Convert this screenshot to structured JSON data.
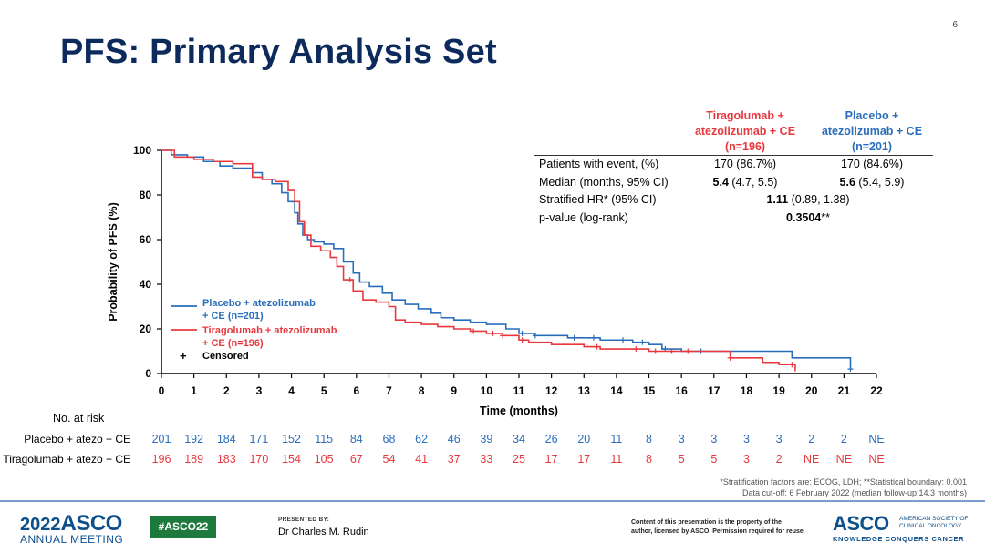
{
  "slide_number": "6",
  "title": "PFS: Primary Analysis Set",
  "colors": {
    "placebo": "#2a6ebb",
    "tiragolumab": "#e8383d",
    "title": "#0d2a5c"
  },
  "summary_table": {
    "col_tira": [
      "Tiragolumab +",
      "atezolizumab + CE",
      "(n=196)"
    ],
    "col_placebo": [
      "Placebo +",
      "atezolizumab + CE",
      "(n=201)"
    ],
    "rows": [
      {
        "label": "Patients with event, (%)",
        "tira": "170 (86.7%)",
        "placebo": "170 (84.6%)"
      },
      {
        "label": "Median (months, 95% CI)",
        "tira_bold": "5.4",
        "tira_rest": " (4.7, 5.5)",
        "placebo_bold": "5.6",
        "placebo_rest": " (5.4, 5.9)"
      },
      {
        "label": "Stratified HR* (95% CI)",
        "shared_bold": "1.11",
        "shared_rest": " (0.89, 1.38)"
      },
      {
        "label": "p-value (log-rank)",
        "shared_bold": "0.3504",
        "shared_rest": "**"
      }
    ]
  },
  "legend": {
    "placebo": [
      "Placebo + atezolizumab",
      "+ CE (n=201)"
    ],
    "tiragolumab": [
      "Tiragolumab + atezolizumab",
      "+ CE (n=196)"
    ],
    "censored": "Censored",
    "censored_symbol": "+"
  },
  "chart_data": {
    "type": "line",
    "xlabel": "Time (months)",
    "ylabel": "Probability of PFS (%)",
    "xlim": [
      0,
      22
    ],
    "ylim": [
      0,
      100
    ],
    "xticks": [
      "0",
      "1",
      "2",
      "3",
      "4",
      "5",
      "6",
      "7",
      "8",
      "9",
      "10",
      "11",
      "12",
      "13",
      "14",
      "15",
      "16",
      "17",
      "18",
      "19",
      "20",
      "21",
      "22"
    ],
    "yticks": [
      "0",
      "20",
      "40",
      "60",
      "80",
      "100"
    ],
    "step": true,
    "series": [
      {
        "name": "Placebo + atezolizumab + CE (n=201)",
        "x": [
          0,
          0.3,
          0.8,
          1.3,
          1.8,
          2.2,
          2.8,
          3.1,
          3.4,
          3.7,
          3.9,
          4.1,
          4.2,
          4.35,
          4.5,
          4.7,
          5.0,
          5.3,
          5.6,
          5.9,
          6.1,
          6.4,
          6.8,
          7.1,
          7.5,
          7.9,
          8.3,
          8.6,
          9.0,
          9.5,
          10.0,
          10.6,
          11.0,
          11.5,
          12.5,
          13.5,
          14.5,
          15.0,
          15.4,
          16.0,
          17.0,
          18.0,
          19.0,
          19.4,
          21.2
        ],
        "y": [
          100,
          98,
          97,
          95,
          93,
          92,
          90,
          87,
          85,
          81,
          77,
          72,
          67,
          62,
          60,
          59,
          58,
          56,
          50,
          45,
          41,
          39,
          36,
          33,
          31,
          29,
          27,
          25,
          24,
          23,
          22,
          20,
          18,
          17,
          16,
          15,
          14,
          13,
          11,
          10,
          10,
          10,
          10,
          7,
          2
        ],
        "censor_x": [
          11.1,
          11.5,
          12.7,
          13.3,
          14.2,
          14.8,
          15.5,
          16.6,
          21.2
        ]
      },
      {
        "name": "Tiragolumab + atezolizumab + CE (n=196)",
        "x": [
          0,
          0.4,
          1.0,
          1.6,
          2.2,
          2.8,
          3.1,
          3.5,
          3.9,
          4.1,
          4.25,
          4.4,
          4.6,
          4.9,
          5.2,
          5.4,
          5.6,
          5.9,
          6.2,
          6.6,
          7.0,
          7.2,
          7.5,
          8.0,
          8.5,
          9.0,
          9.5,
          10.0,
          10.5,
          11.0,
          11.3,
          12.0,
          13.0,
          13.5,
          14.0,
          15.0,
          17.5,
          18.5,
          19.0,
          19.5
        ],
        "y": [
          100,
          97,
          96,
          95,
          94,
          88,
          87,
          86,
          82,
          77,
          68,
          62,
          57,
          55,
          52,
          48,
          42,
          37,
          33,
          32,
          30,
          24,
          23,
          22,
          21,
          20,
          19,
          18,
          17,
          15,
          14,
          13,
          12,
          11,
          11,
          10,
          7,
          5,
          4,
          1
        ],
        "censor_x": [
          5.8,
          9.6,
          10.2,
          10.5,
          11.1,
          13.4,
          14.6,
          15.2,
          15.7,
          16.2,
          17.5,
          19.4
        ]
      }
    ]
  },
  "risk_table": {
    "heading": "No. at risk",
    "placebo_label": "Placebo + atezo + CE",
    "tira_label": "Tiragolumab + atezo + CE",
    "placebo": [
      "201",
      "192",
      "184",
      "171",
      "152",
      "115",
      "84",
      "68",
      "62",
      "46",
      "39",
      "34",
      "26",
      "20",
      "11",
      "8",
      "3",
      "3",
      "3",
      "3",
      "2",
      "2",
      "NE"
    ],
    "tira": [
      "196",
      "189",
      "183",
      "170",
      "154",
      "105",
      "67",
      "54",
      "41",
      "37",
      "33",
      "25",
      "17",
      "17",
      "11",
      "8",
      "5",
      "5",
      "3",
      "2",
      "NE",
      "NE",
      "NE"
    ]
  },
  "footnotes": [
    "*Stratification factors are: ECOG, LDH; **Statistical boundary:  0.001",
    "Data cut-off: 6 February 2022 (median follow-up:14.3  months)"
  ],
  "footer": {
    "meeting_year": "2022",
    "meeting_org": "ASCO",
    "meeting_sub": "ANNUAL MEETING",
    "hashtag": "#ASCO22",
    "presented_by": "PRESENTED BY:",
    "presenter": "Dr Charles M. Rudin",
    "notice": [
      "Content of this presentation is the property of the",
      "author, licensed by ASCO. Permission required for reuse."
    ],
    "asco_logo": "ASCO",
    "asco_tag": [
      "AMERICAN SOCIETY OF",
      "CLINICAL ONCOLOGY"
    ],
    "asco_slogan": "KNOWLEDGE CONQUERS CANCER"
  }
}
